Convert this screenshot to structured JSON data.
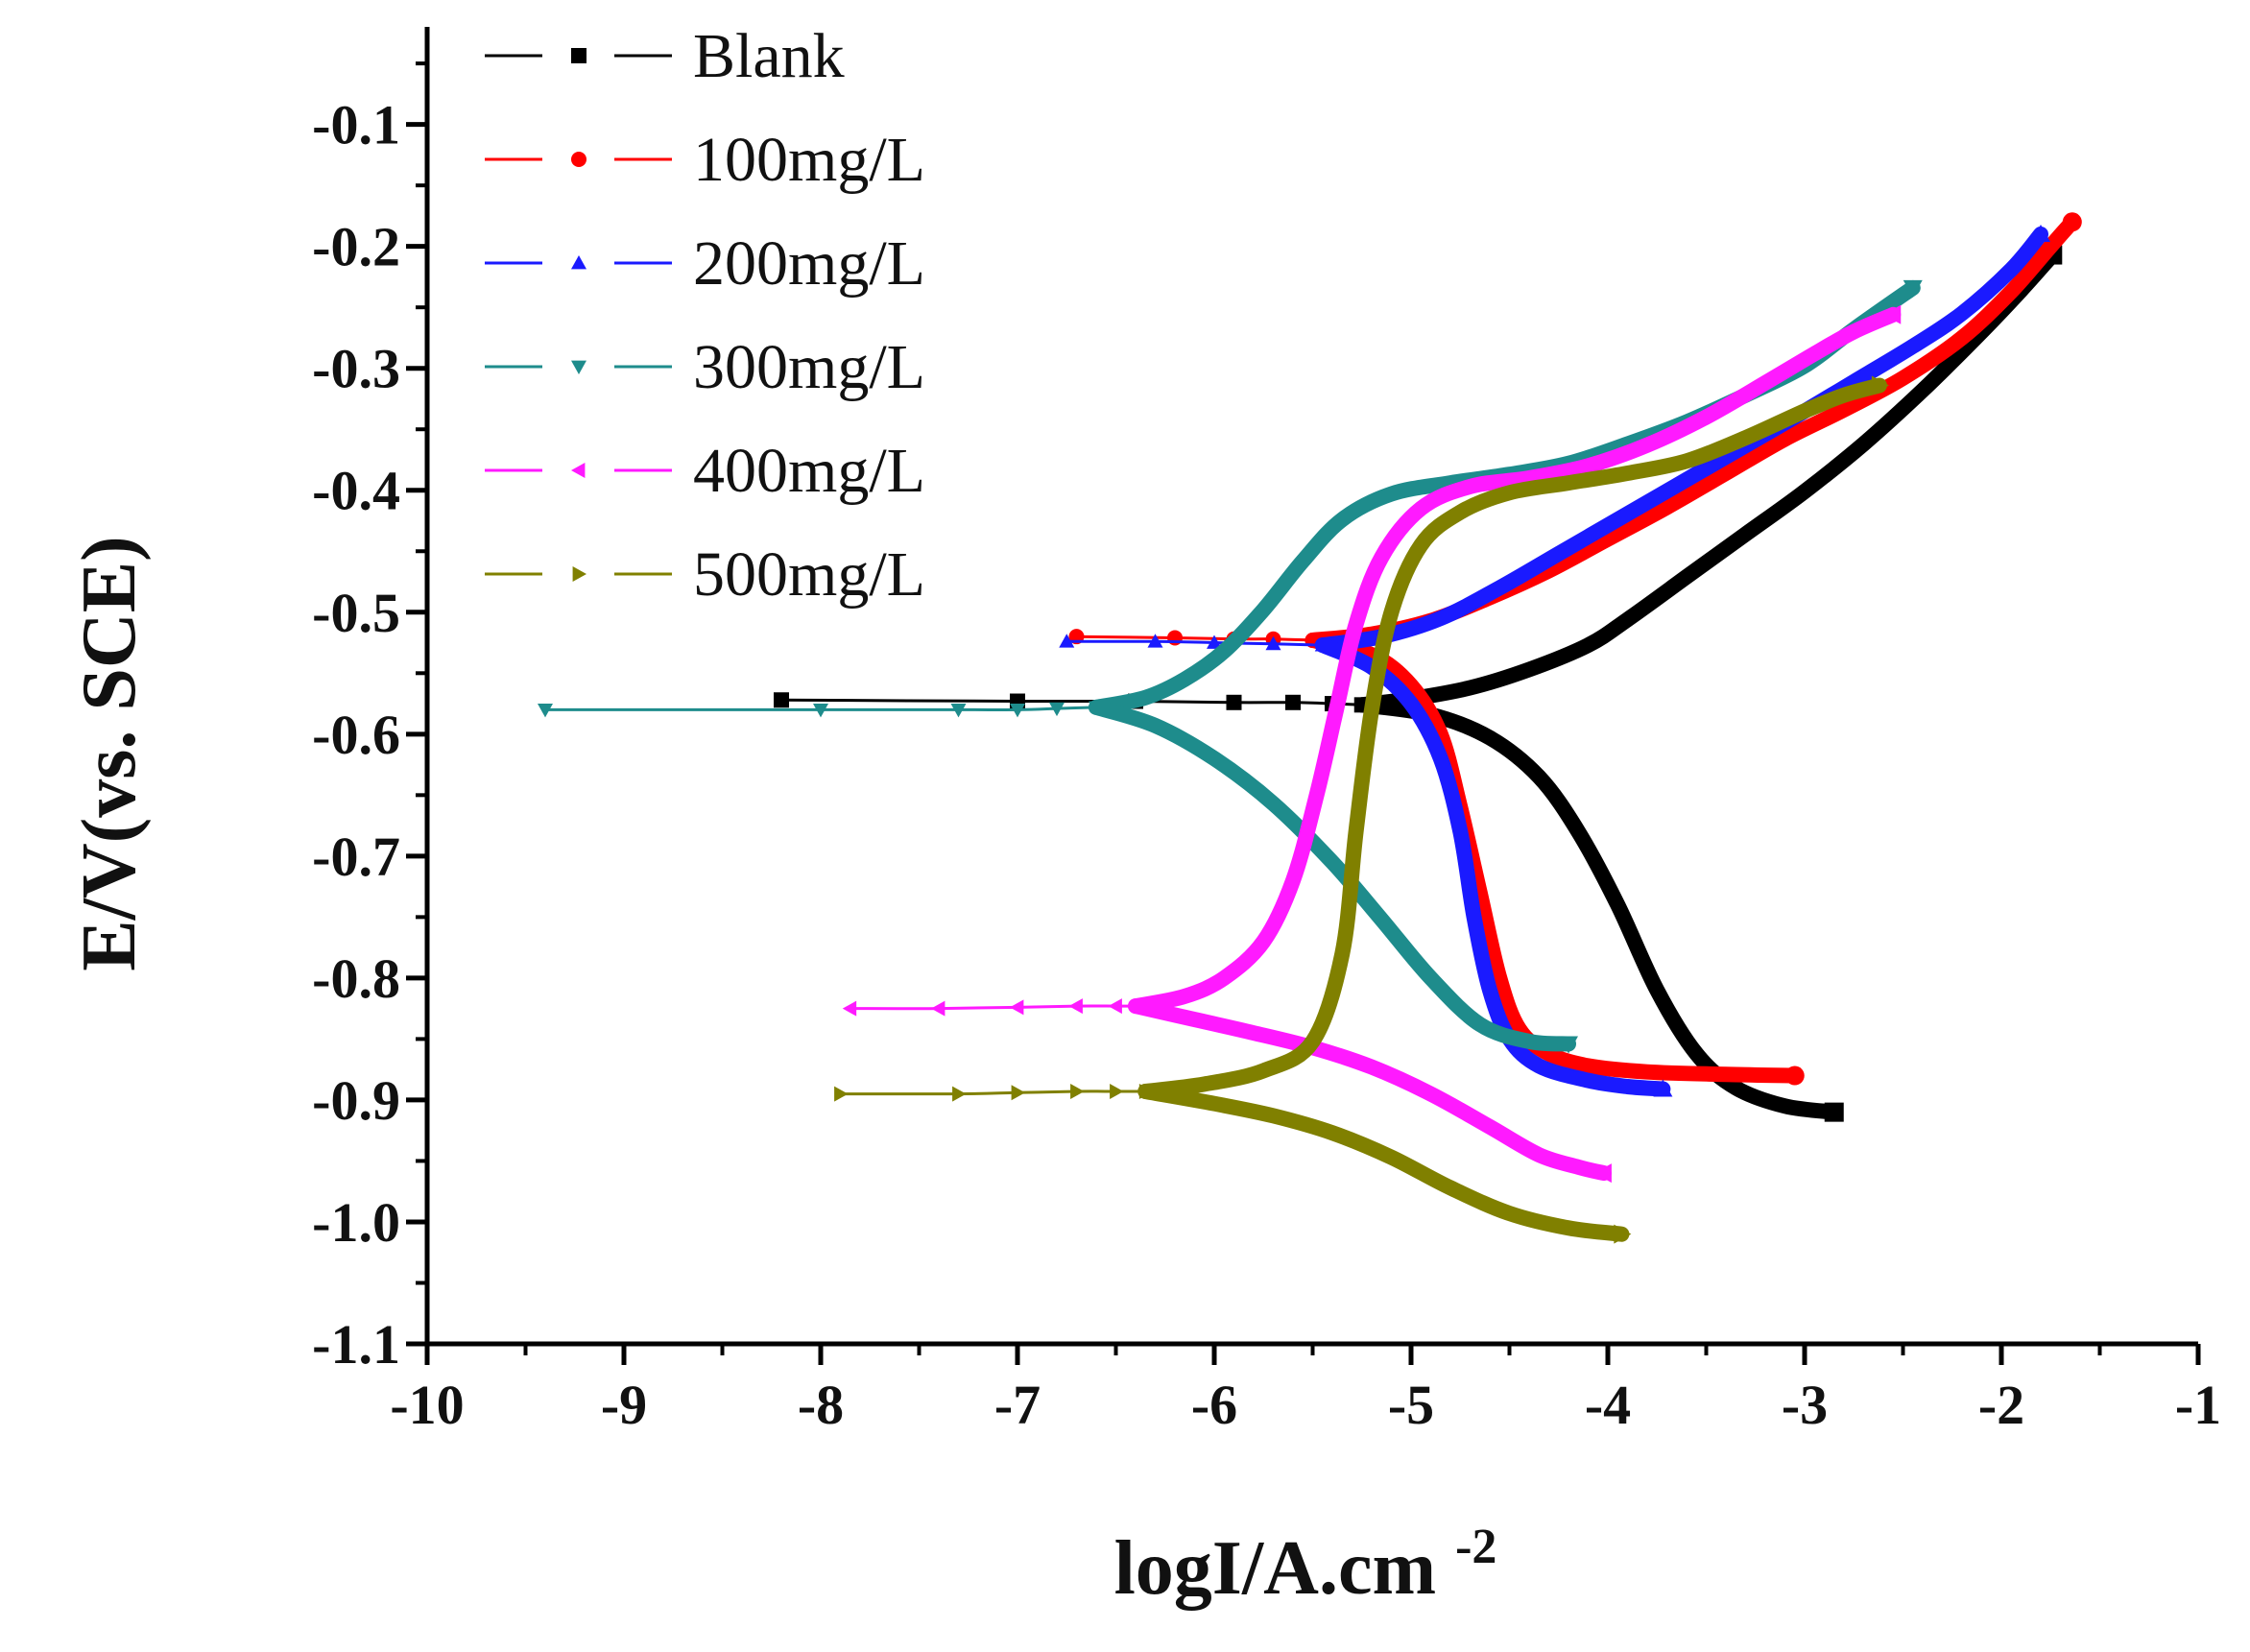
{
  "chart_data": {
    "type": "line",
    "title": "",
    "xlabel": "logI/A.cm",
    "xlabel_sup": "-2",
    "ylabel": "E/V(vs. SCE)",
    "xlim": [
      -10,
      -1
    ],
    "ylim": [
      -1.1,
      -0.02
    ],
    "x_ticks": [
      -10,
      -9,
      -8,
      -7,
      -6,
      -5,
      -4,
      -3,
      -2,
      -1
    ],
    "x_tick_labels": [
      "-10",
      "-9",
      "-8",
      "-7",
      "-6",
      "-5",
      "-4",
      "-3",
      "-2",
      "-1"
    ],
    "y_ticks": [
      -0.1,
      -0.2,
      -0.3,
      -0.4,
      -0.5,
      -0.6,
      -0.7,
      -0.8,
      -0.9,
      -1.0,
      -1.1
    ],
    "y_tick_labels": [
      "-0.1",
      "-0.2",
      "-0.3",
      "-0.4",
      "-0.5",
      "-0.6",
      "-0.7",
      "-0.8",
      "-0.9",
      "-1.0",
      "-1.1"
    ],
    "grid": false,
    "legend_position": "top-left",
    "series": [
      {
        "name": "Blank",
        "color": "#000000",
        "marker": "square",
        "tail": [
          [
            -8.2,
            -0.572
          ],
          [
            -7.0,
            -0.573
          ],
          [
            -6.4,
            -0.573
          ],
          [
            -5.9,
            -0.574
          ],
          [
            -5.6,
            -0.574
          ],
          [
            -5.4,
            -0.575
          ],
          [
            -5.25,
            -0.576
          ]
        ],
        "anodic": [
          [
            -5.25,
            -0.576
          ],
          [
            -5.0,
            -0.571
          ],
          [
            -4.7,
            -0.562
          ],
          [
            -4.4,
            -0.547
          ],
          [
            -4.1,
            -0.527
          ],
          [
            -3.9,
            -0.506
          ],
          [
            -3.6,
            -0.471
          ],
          [
            -3.3,
            -0.436
          ],
          [
            -3.0,
            -0.401
          ],
          [
            -2.7,
            -0.362
          ],
          [
            -2.4,
            -0.318
          ],
          [
            -2.1,
            -0.27
          ],
          [
            -1.9,
            -0.236
          ],
          [
            -1.74,
            -0.207
          ]
        ],
        "cathodic": [
          [
            -5.25,
            -0.576
          ],
          [
            -4.9,
            -0.584
          ],
          [
            -4.6,
            -0.603
          ],
          [
            -4.35,
            -0.635
          ],
          [
            -4.15,
            -0.68
          ],
          [
            -3.95,
            -0.74
          ],
          [
            -3.75,
            -0.81
          ],
          [
            -3.55,
            -0.862
          ],
          [
            -3.35,
            -0.89
          ],
          [
            -3.1,
            -0.905
          ],
          [
            -2.85,
            -0.91
          ]
        ]
      },
      {
        "name": "100mg/L",
        "color": "#ff0000",
        "marker": "circle",
        "tail": [
          [
            -6.7,
            -0.52
          ],
          [
            -6.2,
            -0.521
          ],
          [
            -5.9,
            -0.522
          ],
          [
            -5.7,
            -0.522
          ],
          [
            -5.5,
            -0.523
          ]
        ],
        "anodic": [
          [
            -5.5,
            -0.523
          ],
          [
            -5.2,
            -0.518
          ],
          [
            -4.9,
            -0.507
          ],
          [
            -4.6,
            -0.488
          ],
          [
            -4.3,
            -0.466
          ],
          [
            -4.0,
            -0.44
          ],
          [
            -3.7,
            -0.414
          ],
          [
            -3.4,
            -0.386
          ],
          [
            -3.1,
            -0.358
          ],
          [
            -2.8,
            -0.334
          ],
          [
            -2.5,
            -0.308
          ],
          [
            -2.2,
            -0.275
          ],
          [
            -1.95,
            -0.237
          ],
          [
            -1.75,
            -0.2
          ],
          [
            -1.64,
            -0.18
          ]
        ],
        "cathodic": [
          [
            -5.5,
            -0.523
          ],
          [
            -5.2,
            -0.535
          ],
          [
            -5.0,
            -0.56
          ],
          [
            -4.85,
            -0.6
          ],
          [
            -4.75,
            -0.66
          ],
          [
            -4.65,
            -0.73
          ],
          [
            -4.55,
            -0.8
          ],
          [
            -4.45,
            -0.842
          ],
          [
            -4.3,
            -0.862
          ],
          [
            -4.1,
            -0.872
          ],
          [
            -3.8,
            -0.877
          ],
          [
            -3.4,
            -0.879
          ],
          [
            -3.05,
            -0.88
          ]
        ]
      },
      {
        "name": "200mg/L",
        "color": "#1a1aff",
        "marker": "triangle-up",
        "tail": [
          [
            -6.75,
            -0.524
          ],
          [
            -6.3,
            -0.524
          ],
          [
            -6.0,
            -0.525
          ],
          [
            -5.7,
            -0.526
          ],
          [
            -5.45,
            -0.527
          ]
        ],
        "anodic": [
          [
            -5.45,
            -0.527
          ],
          [
            -5.15,
            -0.52
          ],
          [
            -4.85,
            -0.505
          ],
          [
            -4.55,
            -0.48
          ],
          [
            -4.25,
            -0.452
          ],
          [
            -3.95,
            -0.424
          ],
          [
            -3.65,
            -0.396
          ],
          [
            -3.35,
            -0.368
          ],
          [
            -3.05,
            -0.34
          ],
          [
            -2.75,
            -0.311
          ],
          [
            -2.45,
            -0.282
          ],
          [
            -2.2,
            -0.255
          ],
          [
            -1.95,
            -0.219
          ],
          [
            -1.8,
            -0.19
          ]
        ],
        "cathodic": [
          [
            -5.45,
            -0.527
          ],
          [
            -5.2,
            -0.545
          ],
          [
            -5.0,
            -0.575
          ],
          [
            -4.85,
            -0.62
          ],
          [
            -4.75,
            -0.68
          ],
          [
            -4.68,
            -0.75
          ],
          [
            -4.6,
            -0.81
          ],
          [
            -4.5,
            -0.85
          ],
          [
            -4.35,
            -0.872
          ],
          [
            -4.1,
            -0.884
          ],
          [
            -3.9,
            -0.889
          ],
          [
            -3.72,
            -0.891
          ]
        ]
      },
      {
        "name": "300mg/L",
        "color": "#1e8c8c",
        "marker": "triangle-down",
        "tail": [
          [
            -9.4,
            -0.58
          ],
          [
            -8.0,
            -0.58
          ],
          [
            -7.3,
            -0.58
          ],
          [
            -7.0,
            -0.58
          ],
          [
            -6.8,
            -0.579
          ],
          [
            -6.6,
            -0.578
          ]
        ],
        "anodic": [
          [
            -6.6,
            -0.578
          ],
          [
            -6.35,
            -0.57
          ],
          [
            -6.15,
            -0.555
          ],
          [
            -5.95,
            -0.532
          ],
          [
            -5.75,
            -0.498
          ],
          [
            -5.55,
            -0.458
          ],
          [
            -5.35,
            -0.424
          ],
          [
            -5.1,
            -0.403
          ],
          [
            -4.8,
            -0.394
          ],
          [
            -4.5,
            -0.387
          ],
          [
            -4.2,
            -0.378
          ],
          [
            -3.9,
            -0.362
          ],
          [
            -3.6,
            -0.344
          ],
          [
            -3.3,
            -0.322
          ],
          [
            -3.0,
            -0.298
          ],
          [
            -2.75,
            -0.268
          ],
          [
            -2.45,
            -0.234
          ]
        ],
        "cathodic": [
          [
            -6.6,
            -0.578
          ],
          [
            -6.3,
            -0.593
          ],
          [
            -6.0,
            -0.62
          ],
          [
            -5.7,
            -0.657
          ],
          [
            -5.4,
            -0.705
          ],
          [
            -5.15,
            -0.752
          ],
          [
            -4.9,
            -0.8
          ],
          [
            -4.65,
            -0.838
          ],
          [
            -4.4,
            -0.852
          ],
          [
            -4.2,
            -0.854
          ]
        ]
      },
      {
        "name": "400mg/L",
        "color": "#ff1aff",
        "marker": "triangle-left",
        "tail": [
          [
            -7.85,
            -0.825
          ],
          [
            -7.4,
            -0.825
          ],
          [
            -7.0,
            -0.824
          ],
          [
            -6.7,
            -0.823
          ],
          [
            -6.5,
            -0.823
          ],
          [
            -6.4,
            -0.823
          ]
        ],
        "anodic": [
          [
            -6.4,
            -0.823
          ],
          [
            -6.15,
            -0.815
          ],
          [
            -5.95,
            -0.8
          ],
          [
            -5.75,
            -0.77
          ],
          [
            -5.6,
            -0.72
          ],
          [
            -5.48,
            -0.65
          ],
          [
            -5.38,
            -0.58
          ],
          [
            -5.28,
            -0.51
          ],
          [
            -5.15,
            -0.455
          ],
          [
            -4.95,
            -0.415
          ],
          [
            -4.7,
            -0.397
          ],
          [
            -4.4,
            -0.39
          ],
          [
            -4.1,
            -0.38
          ],
          [
            -3.8,
            -0.363
          ],
          [
            -3.5,
            -0.34
          ],
          [
            -3.2,
            -0.312
          ],
          [
            -2.95,
            -0.288
          ],
          [
            -2.75,
            -0.27
          ],
          [
            -2.55,
            -0.256
          ]
        ],
        "cathodic": [
          [
            -6.4,
            -0.823
          ],
          [
            -6.1,
            -0.834
          ],
          [
            -5.8,
            -0.845
          ],
          [
            -5.5,
            -0.857
          ],
          [
            -5.2,
            -0.873
          ],
          [
            -4.9,
            -0.895
          ],
          [
            -4.6,
            -0.922
          ],
          [
            -4.35,
            -0.945
          ],
          [
            -4.15,
            -0.955
          ],
          [
            -4.02,
            -0.96
          ]
        ]
      },
      {
        "name": "500mg/L",
        "color": "#808000",
        "marker": "triangle-right",
        "tail": [
          [
            -7.9,
            -0.895
          ],
          [
            -7.3,
            -0.895
          ],
          [
            -7.0,
            -0.894
          ],
          [
            -6.7,
            -0.893
          ],
          [
            -6.5,
            -0.893
          ],
          [
            -6.35,
            -0.893
          ]
        ],
        "anodic": [
          [
            -6.35,
            -0.893
          ],
          [
            -6.05,
            -0.887
          ],
          [
            -5.75,
            -0.876
          ],
          [
            -5.5,
            -0.852
          ],
          [
            -5.35,
            -0.78
          ],
          [
            -5.28,
            -0.68
          ],
          [
            -5.2,
            -0.58
          ],
          [
            -5.1,
            -0.5
          ],
          [
            -4.95,
            -0.445
          ],
          [
            -4.75,
            -0.418
          ],
          [
            -4.5,
            -0.402
          ],
          [
            -4.2,
            -0.394
          ],
          [
            -3.9,
            -0.386
          ],
          [
            -3.6,
            -0.376
          ],
          [
            -3.3,
            -0.357
          ],
          [
            -3.0,
            -0.335
          ],
          [
            -2.8,
            -0.322
          ],
          [
            -2.62,
            -0.314
          ]
        ],
        "cathodic": [
          [
            -6.35,
            -0.893
          ],
          [
            -6.0,
            -0.903
          ],
          [
            -5.7,
            -0.913
          ],
          [
            -5.4,
            -0.927
          ],
          [
            -5.1,
            -0.947
          ],
          [
            -4.8,
            -0.972
          ],
          [
            -4.5,
            -0.993
          ],
          [
            -4.2,
            -1.005
          ],
          [
            -3.93,
            -1.01
          ]
        ]
      }
    ]
  }
}
